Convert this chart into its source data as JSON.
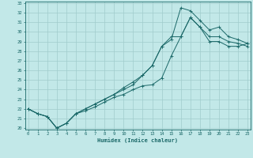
{
  "xlabel": "Humidex (Indice chaleur)",
  "bg_color": "#c2e8e8",
  "grid_color": "#a0cccc",
  "line_color": "#1a6868",
  "spine_color": "#1a6868",
  "xmin": 0,
  "xmax": 23,
  "ymin": 20,
  "ymax": 33,
  "xticks": [
    0,
    1,
    2,
    3,
    4,
    5,
    6,
    7,
    8,
    9,
    10,
    11,
    12,
    13,
    14,
    15,
    16,
    17,
    18,
    19,
    20,
    21,
    22,
    23
  ],
  "yticks": [
    20,
    21,
    22,
    23,
    24,
    25,
    26,
    27,
    28,
    29,
    30,
    31,
    32,
    33
  ],
  "line1_x": [
    0,
    1,
    2,
    3,
    4,
    5,
    6,
    7,
    8,
    9,
    10,
    11,
    12,
    13,
    14,
    15,
    16,
    17,
    18,
    19,
    20,
    21,
    22,
    23
  ],
  "line1_y": [
    22.0,
    21.5,
    21.2,
    20.0,
    20.5,
    21.5,
    21.8,
    22.2,
    22.7,
    23.2,
    23.5,
    24.0,
    24.4,
    24.5,
    25.2,
    27.5,
    29.5,
    31.5,
    30.5,
    29.5,
    29.5,
    29.0,
    28.8,
    28.5
  ],
  "line2_x": [
    0,
    1,
    2,
    3,
    4,
    5,
    6,
    7,
    8,
    9,
    10,
    11,
    12,
    13,
    14,
    15,
    16,
    17,
    18,
    19,
    20,
    21,
    22,
    23
  ],
  "line2_y": [
    22.0,
    21.5,
    21.2,
    20.0,
    20.5,
    21.5,
    22.0,
    22.5,
    23.0,
    23.5,
    24.2,
    24.8,
    25.5,
    26.5,
    28.5,
    29.2,
    32.5,
    32.2,
    31.2,
    30.2,
    30.5,
    29.5,
    29.2,
    28.8
  ],
  "line3_x": [
    0,
    1,
    2,
    3,
    4,
    5,
    6,
    7,
    8,
    9,
    10,
    11,
    12,
    13,
    14,
    15,
    16,
    17,
    18,
    19,
    20,
    21,
    22,
    23
  ],
  "line3_y": [
    22.0,
    21.5,
    21.2,
    20.0,
    20.5,
    21.5,
    22.0,
    22.5,
    23.0,
    23.5,
    24.0,
    24.5,
    25.5,
    26.5,
    28.5,
    29.5,
    29.5,
    31.5,
    30.5,
    29.0,
    29.0,
    28.5,
    28.5,
    28.8
  ]
}
